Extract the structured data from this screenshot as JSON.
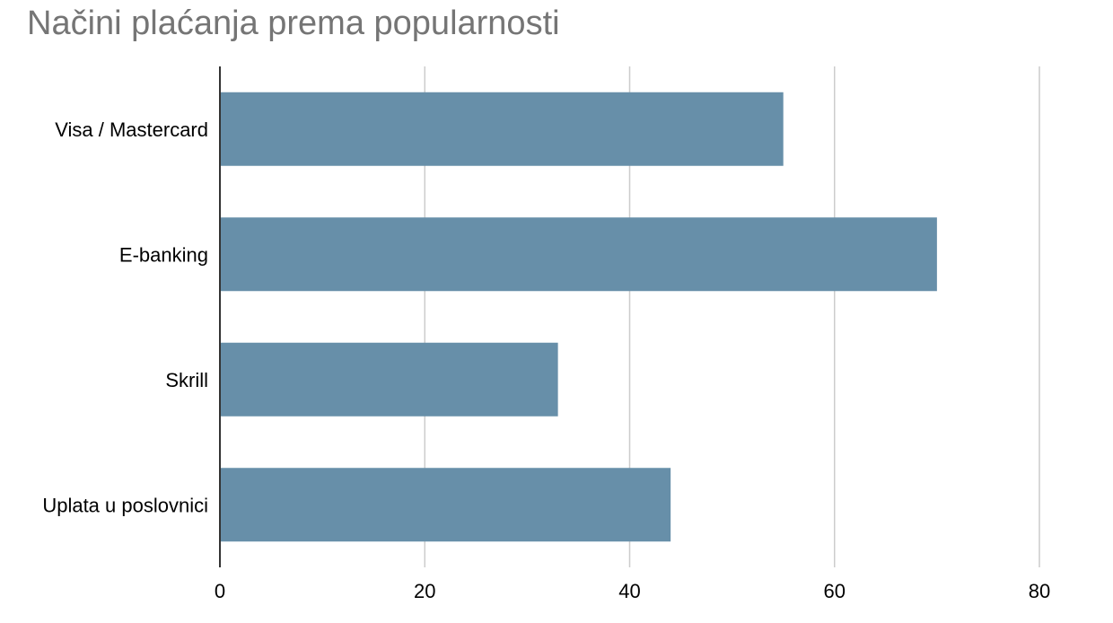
{
  "chart_data": {
    "type": "bar",
    "orientation": "horizontal",
    "title": "Načini plaćanja prema popularnosti",
    "categories": [
      "Visa / Mastercard",
      "E-banking",
      "Skrill",
      "Uplata u poslovnici"
    ],
    "values": [
      55,
      70,
      33,
      44
    ],
    "x_ticks": [
      "0",
      "20",
      "40",
      "60",
      "80"
    ],
    "xlim": [
      0,
      80
    ],
    "xlabel": "",
    "ylabel": "",
    "grid": true,
    "legend": "none",
    "bar_color": "#678fa9",
    "grid_color": "#cccccc",
    "axis_color": "#333333",
    "title_color": "#757575"
  }
}
